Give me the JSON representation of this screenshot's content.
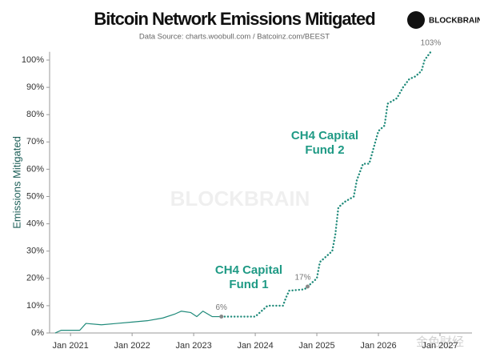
{
  "chart_data": {
    "type": "line",
    "title": "Bitcoin Network Emissions Mitigated",
    "subtitle": "Data Source: charts.woobull.com / Batcoinz.com/BEEST",
    "brand": "BLOCKBRAIN",
    "watermark": "金色财经",
    "y_label": "Emissions Mitigated",
    "xlim": [
      2020.66,
      2027.52
    ],
    "xticks": [
      {
        "value": 2021,
        "label": "Jan 2021"
      },
      {
        "value": 2022,
        "label": "Jan 2022"
      },
      {
        "value": 2023,
        "label": "Jan 2023"
      },
      {
        "value": 2024,
        "label": "Jan 2024"
      },
      {
        "value": 2025,
        "label": "Jan 2025"
      },
      {
        "value": 2026,
        "label": "Jan 2026"
      },
      {
        "value": 2027,
        "label": "Jan 2027"
      }
    ],
    "ylim": [
      0,
      103
    ],
    "yticks": [
      {
        "value": 0,
        "label": "0%"
      },
      {
        "value": 10,
        "label": "10%"
      },
      {
        "value": 20,
        "label": "20%"
      },
      {
        "value": 30,
        "label": "30%"
      },
      {
        "value": 40,
        "label": "40%"
      },
      {
        "value": 50,
        "label": "50%"
      },
      {
        "value": 60,
        "label": "60%"
      },
      {
        "value": 70,
        "label": "70%"
      },
      {
        "value": 80,
        "label": "80%"
      },
      {
        "value": 90,
        "label": "90%"
      },
      {
        "value": 100,
        "label": "100%"
      }
    ],
    "series": [
      {
        "color": "#1f8a7a",
        "style": "solid",
        "x": [
          2020.75,
          2020.85,
          2021.0,
          2021.15,
          2021.25,
          2021.5,
          2021.75,
          2022.0,
          2022.25,
          2022.5,
          2022.7,
          2022.8,
          2022.95,
          2023.05,
          2023.15,
          2023.3,
          2023.45
        ],
        "values": [
          0,
          1,
          1,
          1,
          3.5,
          3,
          3.5,
          4,
          4.5,
          5.5,
          7,
          8,
          7.5,
          6,
          8,
          6,
          6
        ]
      },
      {
        "color": "#1f8a7a",
        "style": "dotted",
        "x": [
          2023.45,
          2024.0,
          2024.1,
          2024.2,
          2024.45,
          2024.5,
          2024.55,
          2024.8,
          2024.85,
          2024.9,
          2025.0,
          2025.05,
          2025.15,
          2025.25,
          2025.3,
          2025.35,
          2025.45,
          2025.6,
          2025.65,
          2025.75,
          2025.85,
          2025.9,
          2026.0,
          2026.1,
          2026.15,
          2026.3,
          2026.4,
          2026.5,
          2026.6,
          2026.7,
          2026.75,
          2026.85
        ],
        "values": [
          6,
          6,
          8,
          10,
          10,
          13,
          15.5,
          16,
          17,
          18,
          20,
          26,
          28,
          30,
          36,
          46,
          48,
          50,
          56,
          62,
          62,
          66,
          74,
          76,
          84,
          86,
          90,
          93,
          94,
          96,
          100,
          103
        ]
      }
    ],
    "annotations": [
      {
        "label": "6%",
        "x": 2023.45,
        "y": 6
      },
      {
        "label": "17%",
        "x": 2024.85,
        "y": 17
      },
      {
        "label": "103%",
        "x": 2026.85,
        "y": 103
      }
    ],
    "notes": [
      {
        "lines": [
          "CH4 Capital",
          "Fund 1"
        ],
        "color": "#1f9a85"
      },
      {
        "lines": [
          "CH4 Capital",
          "Fund 2"
        ],
        "color": "#1f9a85"
      }
    ]
  }
}
